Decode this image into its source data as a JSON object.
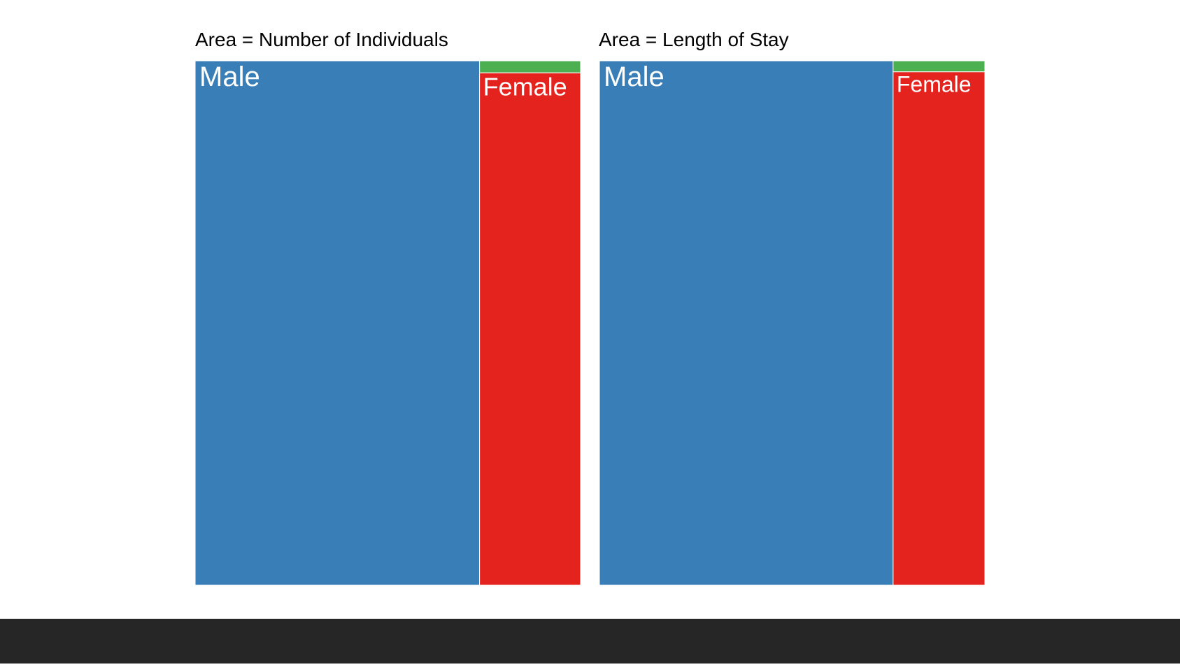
{
  "chart_data": [
    {
      "type": "treemap",
      "title": "Area = Number of Individuals",
      "items": [
        {
          "label": "Male",
          "value": 73.8,
          "color": "#3a7eb8"
        },
        {
          "label": "Female",
          "value": 25.6,
          "color": "#e4231e"
        },
        {
          "label": "",
          "value": 0.6,
          "color": "#4caf50"
        }
      ]
    },
    {
      "type": "treemap",
      "title": "Area = Length of Stay",
      "items": [
        {
          "label": "Male",
          "value": 76.2,
          "color": "#3a7eb8"
        },
        {
          "label": "Female",
          "value": 23.3,
          "color": "#e4231e"
        },
        {
          "label": "",
          "value": 0.5,
          "color": "#4caf50"
        }
      ]
    }
  ],
  "footer": {
    "color": "#262626"
  }
}
